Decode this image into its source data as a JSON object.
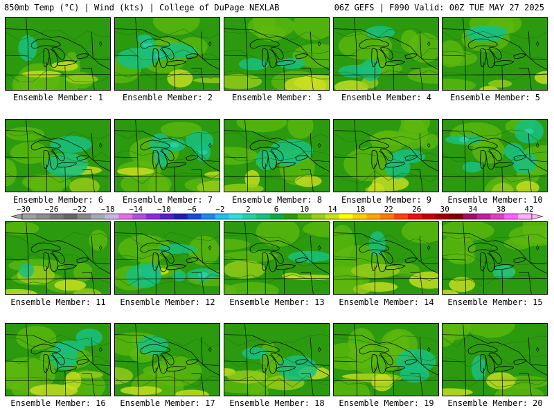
{
  "header": {
    "left": "850mb Temp (°C) | Wind (kts) | College of DuPage NEXLAB",
    "right": "06Z GEFS | F090 Valid: 00Z TUE MAY 27 2025"
  },
  "panels": [
    {
      "member": 1,
      "label": "Ensemble Member: 1",
      "cool": 0.15,
      "warm": 0.45
    },
    {
      "member": 2,
      "label": "Ensemble Member: 2",
      "cool": 0.9,
      "warm": 0.25
    },
    {
      "member": 3,
      "label": "Ensemble Member: 3",
      "cool": 0.35,
      "warm": 0.5
    },
    {
      "member": 4,
      "label": "Ensemble Member: 4",
      "cool": 0.55,
      "warm": 0.4
    },
    {
      "member": 5,
      "label": "Ensemble Member: 5",
      "cool": 0.35,
      "warm": 0.5
    },
    {
      "member": 6,
      "label": "Ensemble Member: 6",
      "cool": 0.3,
      "warm": 0.4
    },
    {
      "member": 7,
      "label": "Ensemble Member: 7",
      "cool": 0.75,
      "warm": 0.55
    },
    {
      "member": 8,
      "label": "Ensemble Member: 8",
      "cool": 0.45,
      "warm": 0.55
    },
    {
      "member": 9,
      "label": "Ensemble Member: 9",
      "cool": 0.25,
      "warm": 0.55
    },
    {
      "member": 10,
      "label": "Ensemble Member: 10",
      "cool": 0.85,
      "warm": 0.35
    },
    {
      "member": 11,
      "label": "Ensemble Member: 11",
      "cool": 0.1,
      "warm": 0.6
    },
    {
      "member": 12,
      "label": "Ensemble Member: 12",
      "cool": 0.9,
      "warm": 0.2
    },
    {
      "member": 13,
      "label": "Ensemble Member: 13",
      "cool": 0.15,
      "warm": 0.5
    },
    {
      "member": 14,
      "label": "Ensemble Member: 14",
      "cool": 0.2,
      "warm": 0.65
    },
    {
      "member": 15,
      "label": "Ensemble Member: 15",
      "cool": 0.2,
      "warm": 0.45
    },
    {
      "member": 16,
      "label": "Ensemble Member: 16",
      "cool": 0.5,
      "warm": 0.45
    },
    {
      "member": 17,
      "label": "Ensemble Member: 17",
      "cool": 0.2,
      "warm": 0.55
    },
    {
      "member": 18,
      "label": "Ensemble Member: 18",
      "cool": 0.25,
      "warm": 0.6
    },
    {
      "member": 19,
      "label": "Ensemble Member: 19",
      "cool": 0.3,
      "warm": 0.5
    },
    {
      "member": 20,
      "label": "Ensemble Member: 20",
      "cool": 0.1,
      "warm": 0.55
    }
  ],
  "colorbar": {
    "ticks": [
      "−30",
      "−26",
      "−22",
      "−18",
      "−14",
      "−10",
      "−6",
      "−2",
      "2",
      "6",
      "10",
      "14",
      "18",
      "22",
      "26",
      "30",
      "34",
      "38",
      "42"
    ],
    "colors": [
      "#a0a0a0",
      "#8c8c8c",
      "#787878",
      "#666666",
      "#888888",
      "#a8a8b8",
      "#c8b8e0",
      "#e070e0",
      "#b050d8",
      "#8a2be0",
      "#5a1ec8",
      "#2020b0",
      "#1a4ad8",
      "#1e88e8",
      "#20c0f0",
      "#30e0d8",
      "#28d0a8",
      "#18c080",
      "#11aa44",
      "#2b9a0e",
      "#5fb80e",
      "#9acd1a",
      "#cce020",
      "#ffff00",
      "#ffd000",
      "#ffa500",
      "#ff7a00",
      "#ff4000",
      "#ee1010",
      "#c80000",
      "#a00000",
      "#800000",
      "#a01060",
      "#c020a0",
      "#e040c0",
      "#ff60ff",
      "#ffb0ff"
    ]
  },
  "colors": {
    "background_green": "#2b9a0e",
    "light_green": "#5fb80e",
    "yellow_green": "#9acd1a",
    "teal": "#18c080",
    "aqua": "#28d0a8",
    "cyan": "#30e0d8",
    "yellow": "#cce020"
  }
}
